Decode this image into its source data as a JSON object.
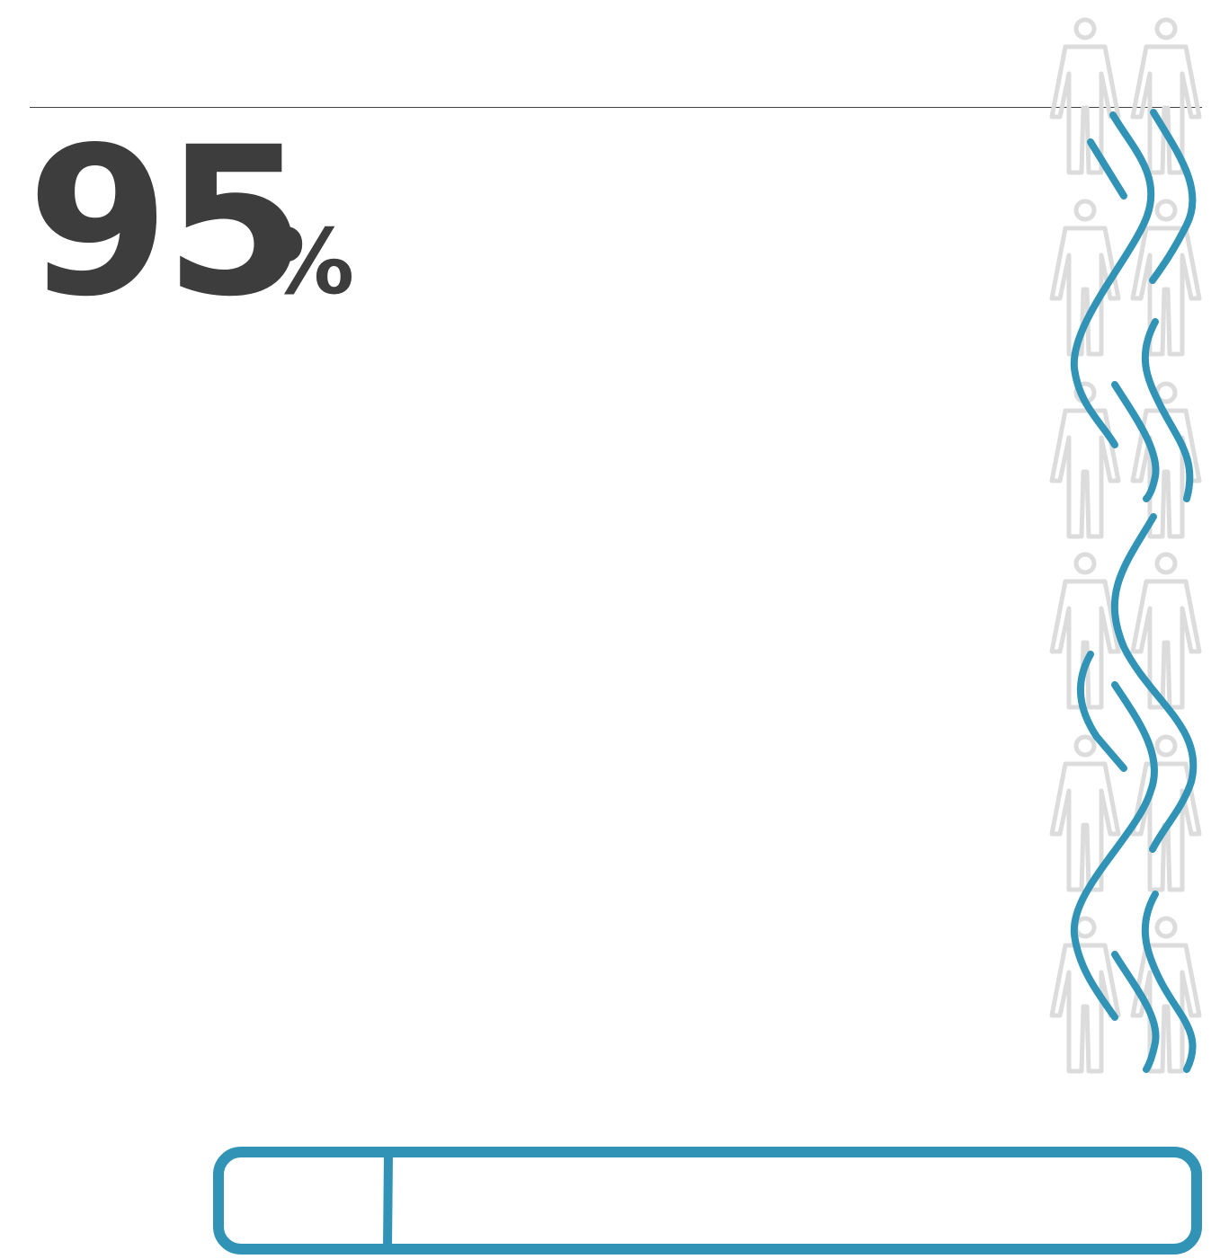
{
  "stat": {
    "value": "95",
    "unit": "%"
  }
}
